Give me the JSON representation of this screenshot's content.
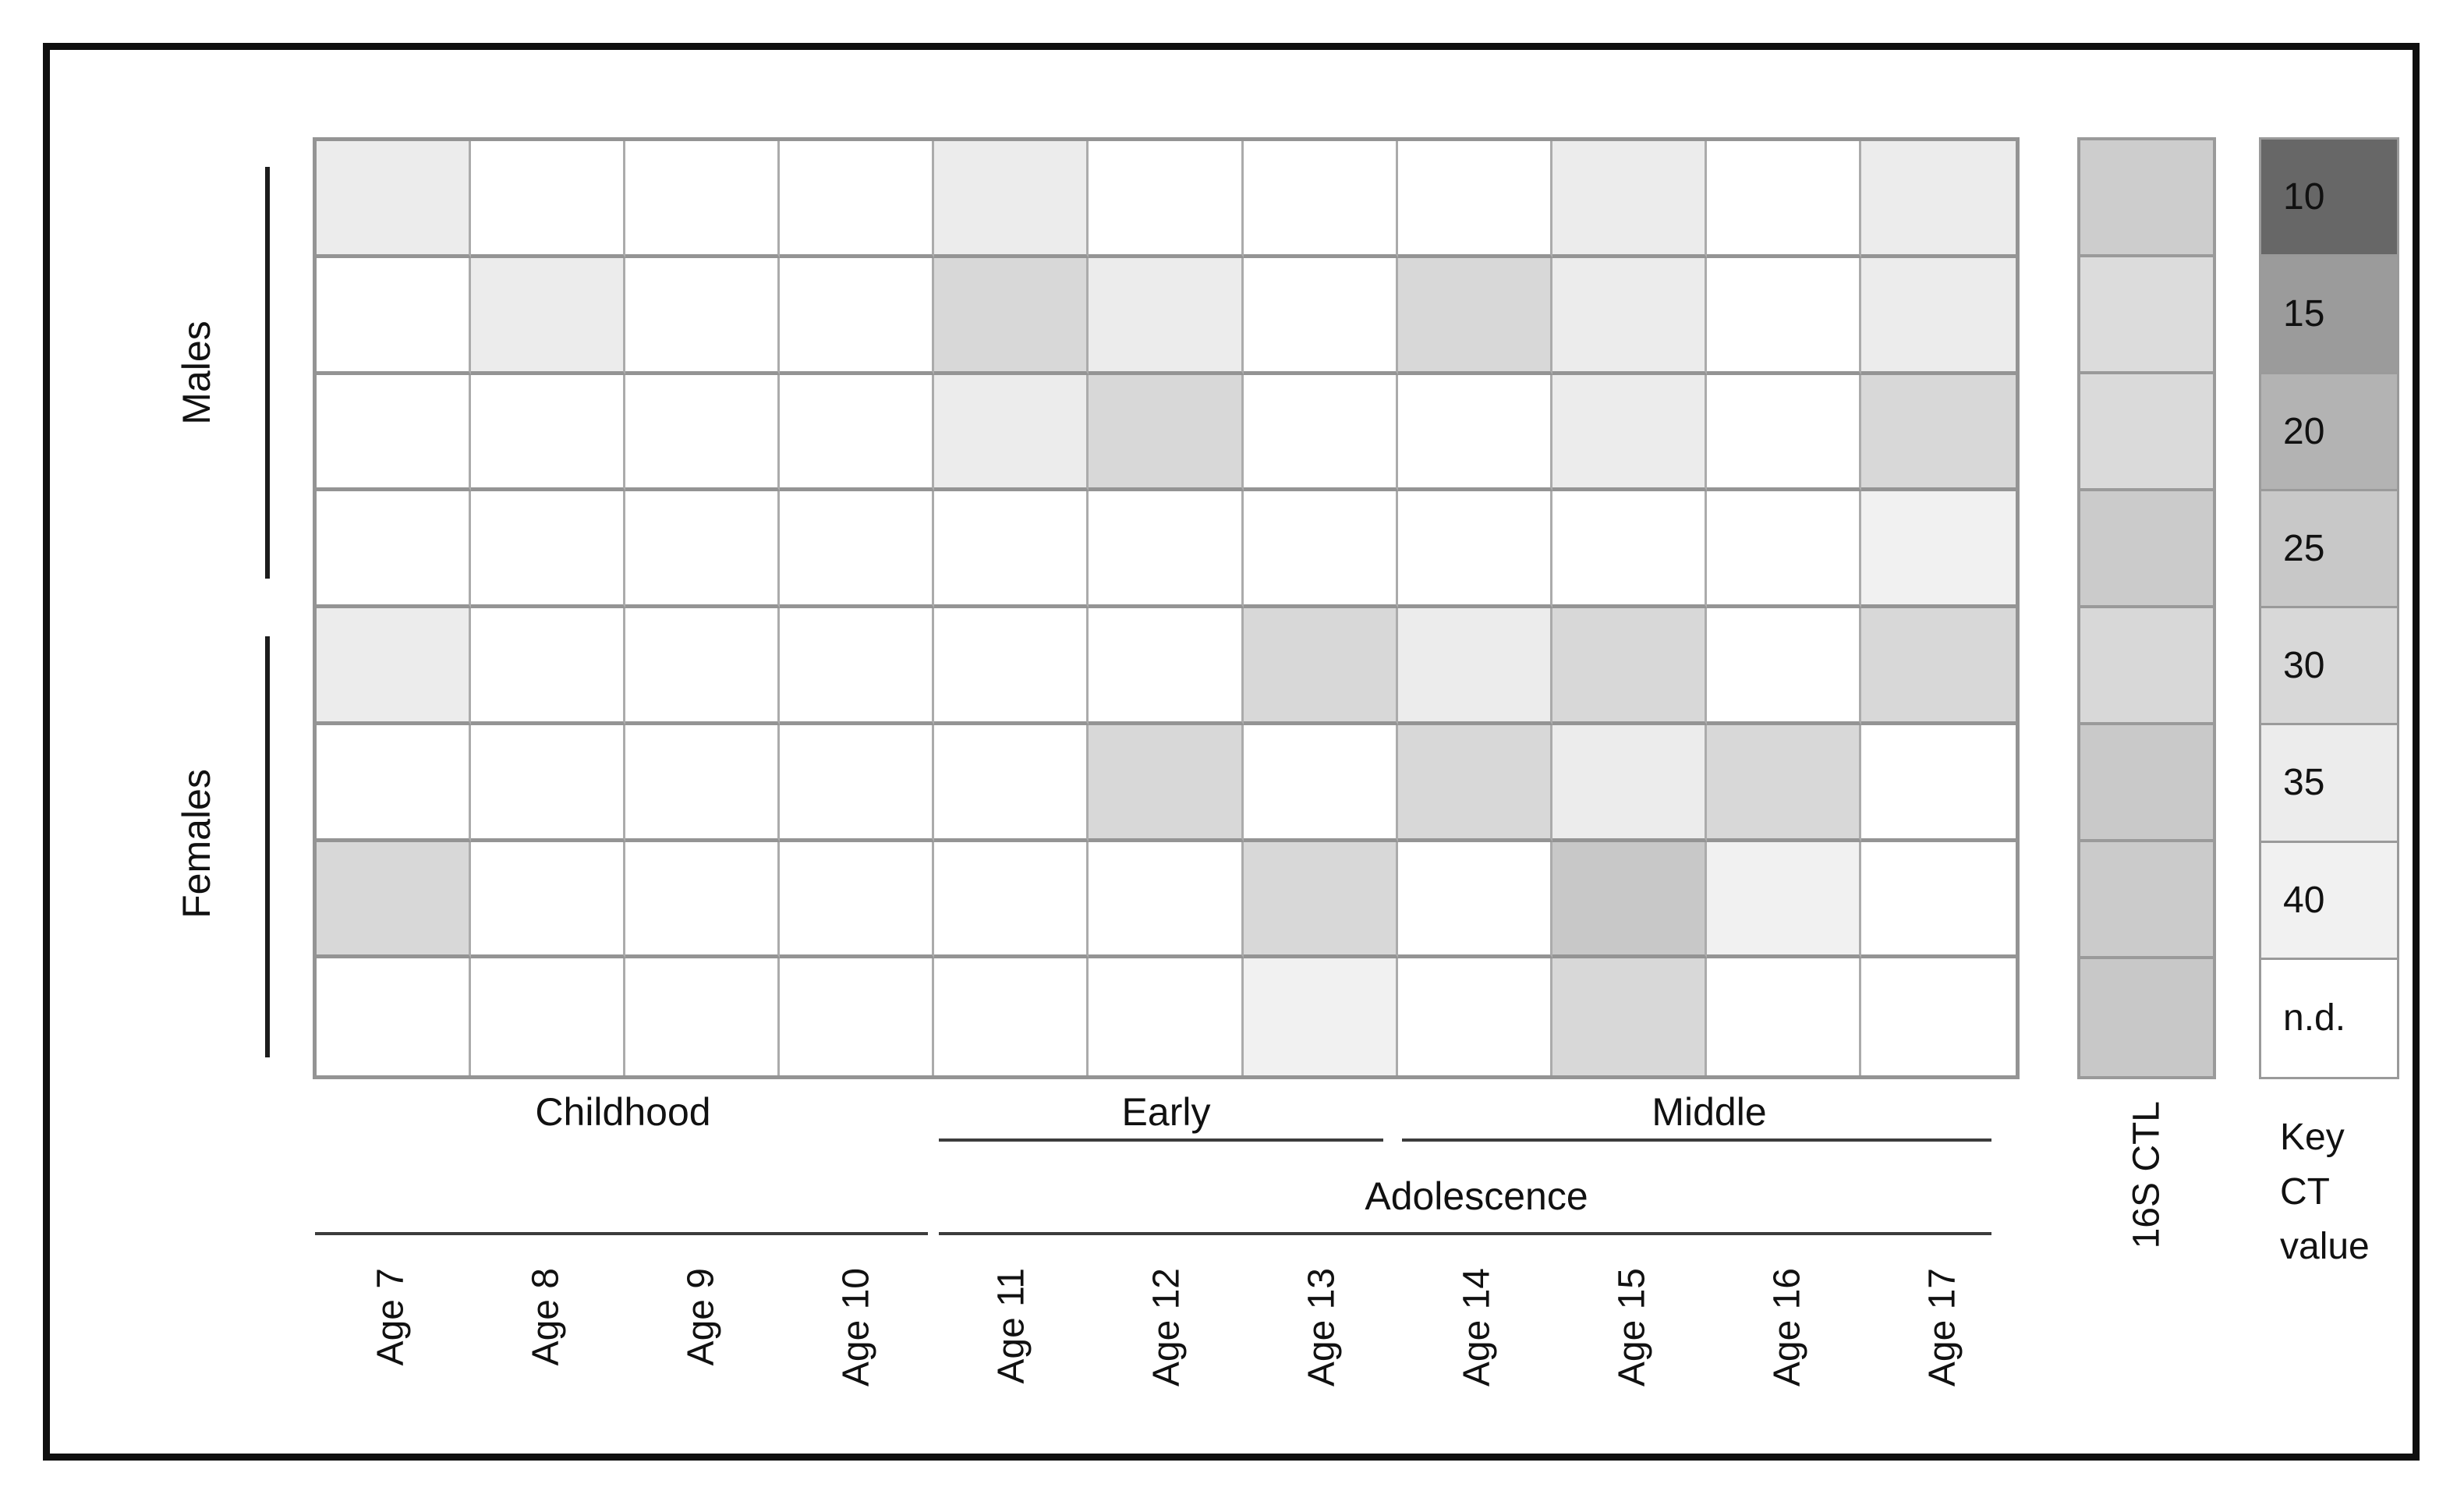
{
  "figure": {
    "row_group_labels": [
      "Males",
      "Females"
    ],
    "stages": {
      "childhood": "Childhood",
      "early": "Early",
      "middle": "Middle",
      "adolescence": "Adolescence"
    },
    "key_title_lines": [
      "Key",
      "CT",
      "value"
    ],
    "palette": {
      "10": "#676767",
      "15": "#9b9b9b",
      "20": "#b3b3b3",
      "25": "#c8c8c8",
      "30": "#d8d8d8",
      "35": "#ececec",
      "40": "#f1f1f1",
      "n.d.": "#ffffff"
    },
    "ctl_colors": [
      "#cdcdcd",
      "#dcdcdc",
      "#dadada",
      "#cbcbcb",
      "#d8d8d8",
      "#c9c9c9",
      "#cbcbcb",
      "#c8c8c8"
    ]
  },
  "chart_data": {
    "type": "heatmap",
    "x_categories": [
      "Age 7",
      "Age 8",
      "Age 9",
      "Age 10",
      "Age 11",
      "Age 12",
      "Age 13",
      "Age 14",
      "Age 15",
      "Age 16",
      "Age 17"
    ],
    "row_groups": [
      {
        "label": "Males",
        "n_rows": 4
      },
      {
        "label": "Females",
        "n_rows": 4
      }
    ],
    "stage_annotations": [
      {
        "label": "Childhood",
        "columns": [
          "Age 7",
          "Age 8",
          "Age 9",
          "Age 10"
        ]
      },
      {
        "label": "Early",
        "parent": "Adolescence",
        "columns": [
          "Age 11",
          "Age 12",
          "Age 13"
        ]
      },
      {
        "label": "Middle",
        "parent": "Adolescence",
        "columns": [
          "Age 14",
          "Age 15",
          "Age 16",
          "Age 17"
        ]
      },
      {
        "label": "Adolescence",
        "columns": [
          "Age 11",
          "Age 12",
          "Age 13",
          "Age 14",
          "Age 15",
          "Age 16",
          "Age 17"
        ]
      }
    ],
    "legend": {
      "title": "Key CT value",
      "entries": [
        "10",
        "15",
        "20",
        "25",
        "30",
        "35",
        "40",
        "n.d."
      ],
      "position": "right"
    },
    "rows": [
      {
        "group": "Males",
        "values": [
          35,
          "n.d.",
          "n.d.",
          "n.d.",
          35,
          "n.d.",
          "n.d.",
          "n.d.",
          35,
          "n.d.",
          35
        ]
      },
      {
        "group": "Males",
        "values": [
          "n.d.",
          35,
          "n.d.",
          "n.d.",
          30,
          35,
          "n.d.",
          30,
          35,
          "n.d.",
          35
        ]
      },
      {
        "group": "Males",
        "values": [
          "n.d.",
          "n.d.",
          "n.d.",
          "n.d.",
          35,
          30,
          "n.d.",
          "n.d.",
          35,
          "n.d.",
          30
        ]
      },
      {
        "group": "Males",
        "values": [
          "n.d.",
          "n.d.",
          "n.d.",
          "n.d.",
          "n.d.",
          "n.d.",
          "n.d.",
          "n.d.",
          "n.d.",
          "n.d.",
          40
        ]
      },
      {
        "group": "Females",
        "values": [
          35,
          "n.d.",
          "n.d.",
          "n.d.",
          "n.d.",
          "n.d.",
          30,
          35,
          30,
          "n.d.",
          30
        ]
      },
      {
        "group": "Females",
        "values": [
          "n.d.",
          "n.d.",
          "n.d.",
          "n.d.",
          "n.d.",
          30,
          "n.d.",
          30,
          35,
          30,
          "n.d."
        ]
      },
      {
        "group": "Females",
        "values": [
          30,
          "n.d.",
          "n.d.",
          "n.d.",
          "n.d.",
          "n.d.",
          30,
          "n.d.",
          25,
          40,
          "n.d."
        ]
      },
      {
        "group": "Females",
        "values": [
          "n.d.",
          "n.d.",
          "n.d.",
          "n.d.",
          "n.d.",
          "n.d.",
          40,
          "n.d.",
          30,
          "n.d.",
          "n.d."
        ]
      }
    ],
    "ctl_column": {
      "label": "16S CTL",
      "values": [
        25,
        30,
        30,
        25,
        30,
        25,
        25,
        25
      ]
    }
  }
}
